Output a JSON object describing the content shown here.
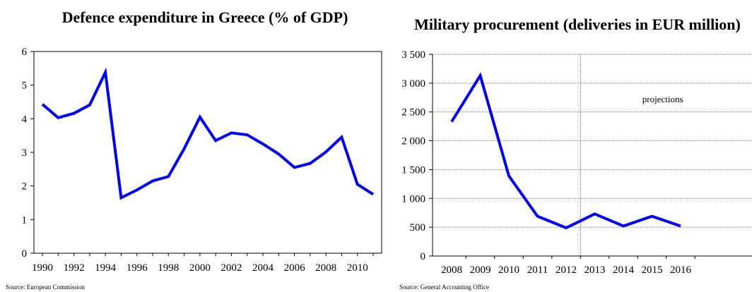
{
  "chart_data": [
    {
      "type": "line",
      "title": "Defence expenditure in Greece (% of GDP)",
      "source": "Source: European Commission",
      "x": [
        1990,
        1991,
        1992,
        1993,
        1994,
        1995,
        1996,
        1997,
        1998,
        1999,
        2000,
        2001,
        2002,
        2003,
        2004,
        2005,
        2006,
        2007,
        2008,
        2009,
        2010,
        2011
      ],
      "series": [
        {
          "values": [
            4.43,
            4.03,
            4.16,
            4.41,
            5.38,
            1.65,
            1.88,
            2.15,
            2.28,
            3.11,
            4.05,
            3.35,
            3.58,
            3.52,
            3.25,
            2.95,
            2.55,
            2.67,
            3.01,
            3.45,
            2.05,
            1.75
          ],
          "color": "#0000FF"
        }
      ],
      "xticks": [
        "1990",
        "1992",
        "1994",
        "1996",
        "1998",
        "2000",
        "2002",
        "2004",
        "2006",
        "2008",
        "2010"
      ],
      "yticks": [
        "0",
        "1",
        "2",
        "3",
        "4",
        "5",
        "6"
      ],
      "ylim": [
        0,
        6
      ],
      "grid": false,
      "xlabel": "",
      "ylabel": ""
    },
    {
      "type": "line",
      "title": "Military procurement (deliveries in EUR million)",
      "source": "Source: General Accounting Office",
      "categories": [
        "2008",
        "2009",
        "2010",
        "2011",
        "2012",
        "2013",
        "2014",
        "2015",
        "2016"
      ],
      "series": [
        {
          "values": [
            2330,
            3130,
            1390,
            690,
            490,
            730,
            520,
            690,
            520
          ],
          "color": "#0000FF"
        }
      ],
      "yticks": [
        "0",
        "500",
        "1 000",
        "1 500",
        "2 000",
        "2 500",
        "3 000",
        "3 500"
      ],
      "ylim": [
        0,
        3500
      ],
      "grid": true,
      "annotation": "projections",
      "xlabel": "",
      "ylabel": ""
    }
  ]
}
